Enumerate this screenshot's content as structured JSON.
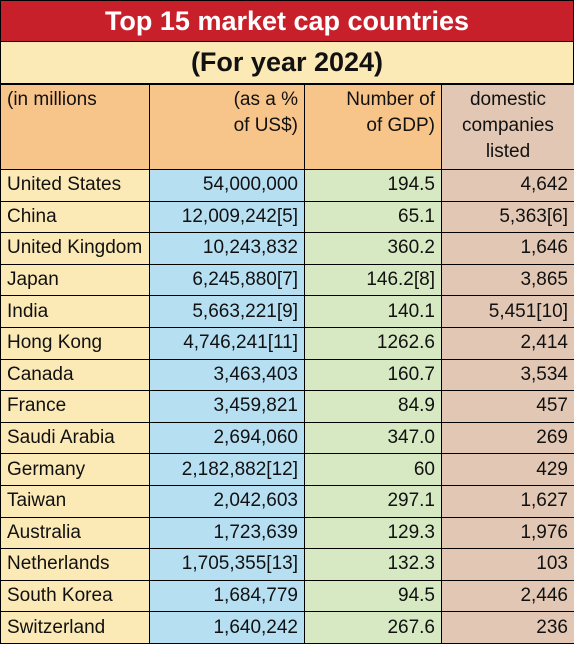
{
  "title": "Top 15 market cap countries",
  "subtitle": "(For year 2024)",
  "headers": {
    "col1": "(in millions",
    "col2": [
      "(as a %",
      "of US$)"
    ],
    "col3": [
      "Number of",
      "of GDP)"
    ],
    "col4": [
      "domestic",
      "companies",
      "listed"
    ]
  },
  "colors": {
    "title_bg": "#c8202a",
    "header_bg": "#f7c48a",
    "country_bg": "#fbe9b6",
    "cap_bg": "#b7dff2",
    "gdp_bg": "#d7e9c2",
    "listed_bg": "#e2c8b4"
  },
  "rows": [
    {
      "country": "United States",
      "cap": "54,000,000",
      "gdp": "194.5",
      "listed": "4,642"
    },
    {
      "country": "China",
      "cap": "12,009,242[5]",
      "gdp": "65.1",
      "listed": "5,363[6]"
    },
    {
      "country": "United Kingdom",
      "cap": "10,243,832",
      "gdp": "360.2",
      "listed": "1,646"
    },
    {
      "country": "Japan",
      "cap": "6,245,880[7]",
      "gdp": "146.2[8]",
      "listed": "3,865"
    },
    {
      "country": "India",
      "cap": "5,663,221[9]",
      "gdp": "140.1",
      "listed": "5,451[10]"
    },
    {
      "country": "Hong Kong",
      "cap": "4,746,241[11]",
      "gdp": "1262.6",
      "listed": "2,414"
    },
    {
      "country": "Canada",
      "cap": "3,463,403",
      "gdp": "160.7",
      "listed": "3,534"
    },
    {
      "country": "France",
      "cap": "3,459,821",
      "gdp": "84.9",
      "listed": "457"
    },
    {
      "country": "Saudi Arabia",
      "cap": "2,694,060",
      "gdp": "347.0",
      "listed": "269"
    },
    {
      "country": "Germany",
      "cap": "2,182,882[12]",
      "gdp": "60",
      "listed": "429"
    },
    {
      "country": "Taiwan",
      "cap": "2,042,603",
      "gdp": "297.1",
      "listed": "1,627"
    },
    {
      "country": "Australia",
      "cap": "1,723,639",
      "gdp": "129.3",
      "listed": "1,976"
    },
    {
      "country": "Netherlands",
      "cap": "1,705,355[13]",
      "gdp": "132.3",
      "listed": "103"
    },
    {
      "country": "South Korea",
      "cap": "1,684,779",
      "gdp": "94.5",
      "listed": "2,446"
    },
    {
      "country": "Switzerland",
      "cap": "1,640,242",
      "gdp": "267.6",
      "listed": "236"
    }
  ]
}
